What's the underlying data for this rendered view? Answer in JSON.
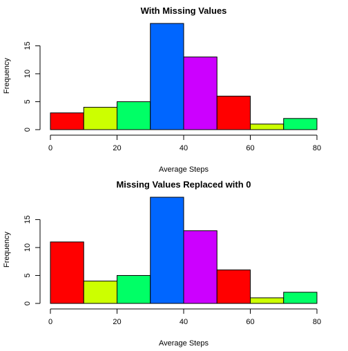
{
  "chart_data": [
    {
      "type": "bar",
      "title": "With Missing Values",
      "xlabel": "Average Steps",
      "ylabel": "Frequency",
      "bin_edges": [
        0,
        10,
        20,
        30,
        40,
        50,
        60,
        70,
        80
      ],
      "values": [
        3,
        4,
        5,
        19,
        13,
        6,
        1,
        2
      ],
      "colors": [
        "#FF0000",
        "#CCFF00",
        "#00FF66",
        "#0066FF",
        "#CC00FF",
        "#FF0000",
        "#CCFF00",
        "#00FF66"
      ],
      "xlim": [
        0,
        80
      ],
      "ylim": [
        0,
        19
      ],
      "x_ticks": [
        "0",
        "20",
        "40",
        "60",
        "80"
      ],
      "y_ticks": [
        "0",
        "5",
        "10",
        "15"
      ],
      "grid": false,
      "legend": "none"
    },
    {
      "type": "bar",
      "title": "Missing Values Replaced with 0",
      "xlabel": "Average Steps",
      "ylabel": "Frequency",
      "bin_edges": [
        0,
        10,
        20,
        30,
        40,
        50,
        60,
        70,
        80
      ],
      "values": [
        11,
        4,
        5,
        19,
        13,
        6,
        1,
        2
      ],
      "colors": [
        "#FF0000",
        "#CCFF00",
        "#00FF66",
        "#0066FF",
        "#CC00FF",
        "#FF0000",
        "#CCFF00",
        "#00FF66"
      ],
      "xlim": [
        0,
        80
      ],
      "ylim": [
        0,
        19
      ],
      "x_ticks": [
        "0",
        "20",
        "40",
        "60",
        "80"
      ],
      "y_ticks": [
        "0",
        "5",
        "10",
        "15"
      ],
      "grid": false,
      "legend": "none"
    }
  ]
}
